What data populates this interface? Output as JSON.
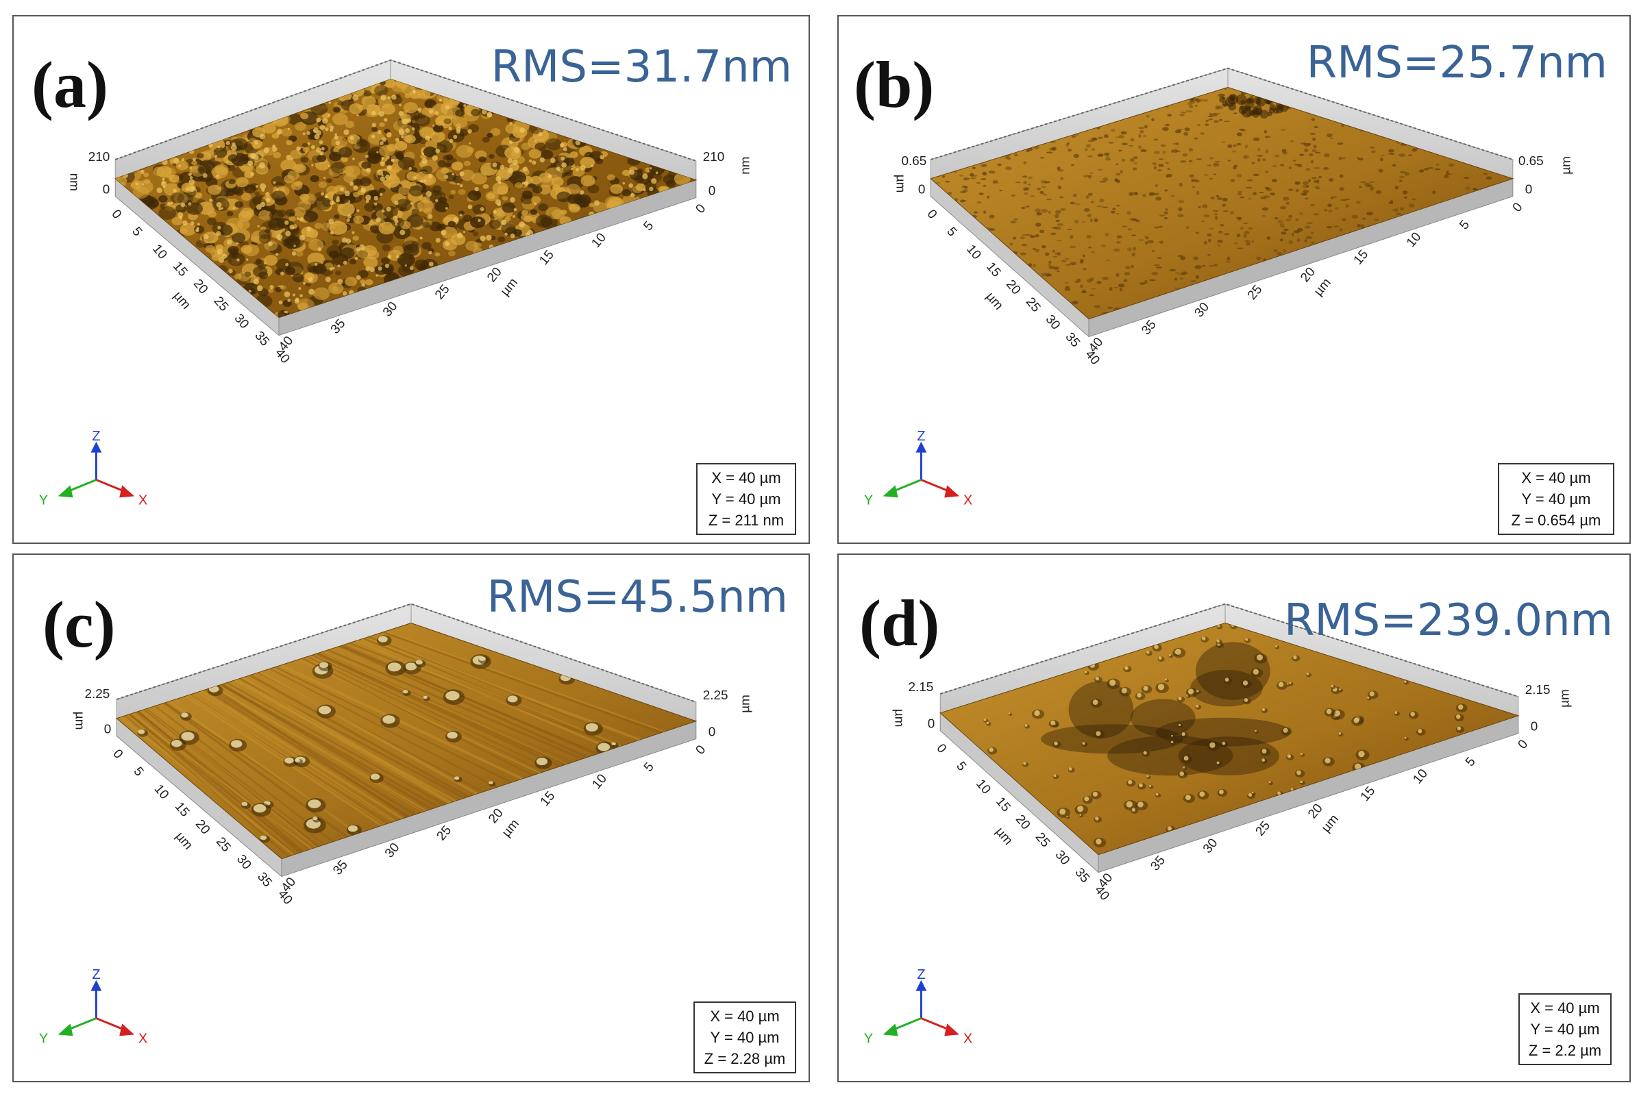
{
  "colors": {
    "rms_text": "#3a6396",
    "surface_light": "#c08a26",
    "surface_dark": "#5a3a0a",
    "axis_x": "#d42020",
    "axis_y": "#22b022",
    "axis_z": "#1f3fd0"
  },
  "axis_triad": {
    "x": "X",
    "y": "Y",
    "z": "Z"
  },
  "panels": [
    {
      "label": "(a)",
      "rms": "RMS=31.7nm",
      "z_max": "210",
      "z_unit": "nm",
      "legend": {
        "x": "X = 40 µm",
        "y": "Y = 40 µm",
        "z": "Z = 211 nm"
      },
      "ticks": [
        "0",
        "5",
        "10",
        "15",
        "20",
        "25",
        "30",
        "35",
        "40"
      ],
      "axis_unit": "µm"
    },
    {
      "label": "(b)",
      "rms": "RMS=25.7nm",
      "z_max": "0.65",
      "z_unit": "µm",
      "legend": {
        "x": "X = 40 µm",
        "y": "Y = 40 µm",
        "z": "Z = 0.654 µm"
      },
      "ticks": [
        "0",
        "5",
        "10",
        "15",
        "20",
        "25",
        "30",
        "35",
        "40"
      ],
      "axis_unit": "µm"
    },
    {
      "label": "(c)",
      "rms": "RMS=45.5nm",
      "z_max": "2.25",
      "z_unit": "µm",
      "legend": {
        "x": "X = 40 µm",
        "y": "Y = 40 µm",
        "z": "Z = 2.28 µm"
      },
      "ticks": [
        "0",
        "5",
        "10",
        "15",
        "20",
        "25",
        "30",
        "35",
        "40"
      ],
      "axis_unit": "µm"
    },
    {
      "label": "(d)",
      "rms": "RMS=239.0nm",
      "z_max": "2.15",
      "z_unit": "µm",
      "legend": {
        "x": "X = 40 µm",
        "y": "Y = 40 µm",
        "z": "Z = 2.2 µm"
      },
      "ticks": [
        "0",
        "5",
        "10",
        "15",
        "20",
        "25",
        "30",
        "35",
        "40"
      ],
      "axis_unit": "µm"
    }
  ]
}
